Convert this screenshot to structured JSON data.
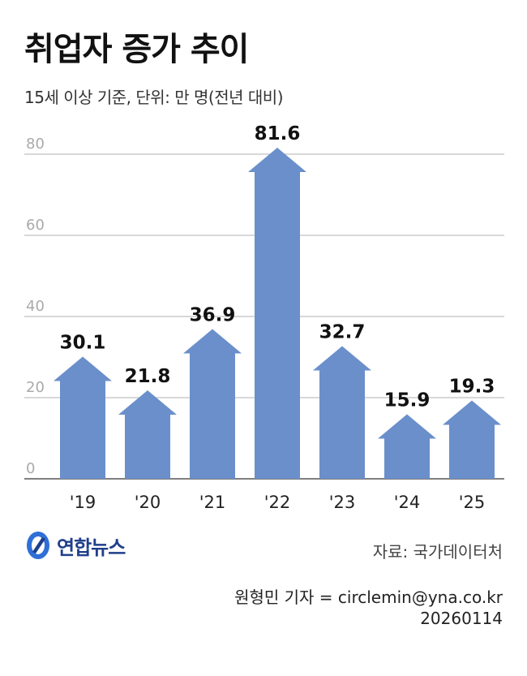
{
  "title": "취업자 증가 추이",
  "subtitle": "15세 이상 기준, 단위: 만 명(전년 대비)",
  "chart_data": {
    "type": "bar",
    "categories": [
      "'19",
      "'20",
      "'21",
      "'22",
      "'23",
      "'24",
      "'25"
    ],
    "values": [
      30.1,
      21.8,
      36.9,
      81.6,
      32.7,
      15.9,
      19.3
    ],
    "value_labels": [
      "30.1",
      "21.8",
      "36.9",
      "81.6",
      "32.7",
      "15.9",
      "19.3"
    ],
    "yticks": [
      "0",
      "20",
      "40",
      "60",
      "80"
    ],
    "ytick_values": [
      0,
      20,
      40,
      60,
      80
    ],
    "ylim": [
      0,
      80
    ],
    "grid": true,
    "bar_shape": "upward arrow",
    "bar_color": "#6a8fcb",
    "title": "취업자 증가 추이",
    "subtitle": "15세 이상 기준, 단위: 만 명(전년 대비)"
  },
  "footer": {
    "brand": "연합뉴스",
    "source": "자료: 국가데이터처",
    "credit": "원형민 기자 = circlemin@yna.co.kr",
    "date": "20260114"
  },
  "colors": {
    "bar": "#6a8fcb",
    "grid": "#999999",
    "tick": "#aaaaaa",
    "brand": "#1f3f8a",
    "brand_accent": "#2f6fd6"
  }
}
